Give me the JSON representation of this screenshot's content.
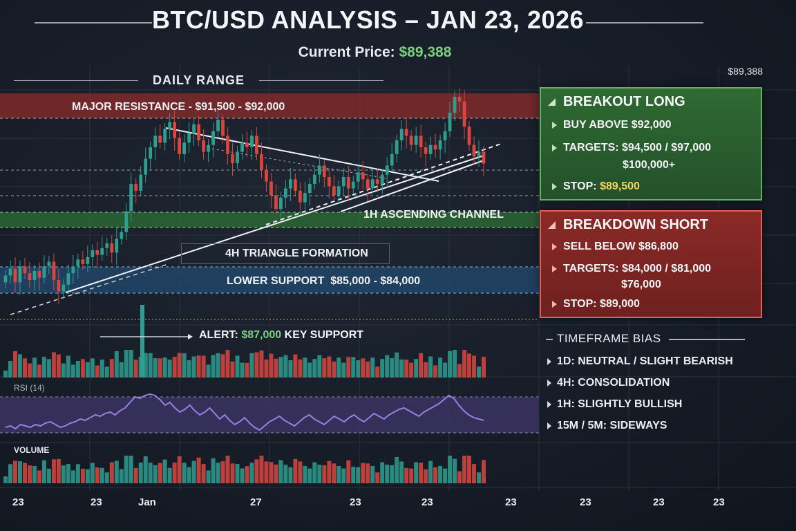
{
  "header": {
    "title": "BTC/USD ANALYSIS – JAN 23, 2026",
    "current_price_label": "Current Price:",
    "current_price_value": "$89,388",
    "right_price": "$89,388"
  },
  "zones": {
    "daily_range": "DAILY RANGE",
    "resistance": "MAJOR RESISTANCE - $91,500 - $92,000",
    "ascending_channel": "1H ASCENDING CHANNEL",
    "triangle": "4H TRIANGLE FORMATION",
    "lower_support": "LOWER SUPPORT  $85,000 - $84,000",
    "alert_prefix": "ALERT:",
    "alert_value": "$87,000",
    "alert_suffix": "KEY SUPPORT"
  },
  "breakout_long": {
    "title": "BREAKOUT LONG",
    "buy": "BUY ABOVE $92,000",
    "targets": "TARGETS: $94,500 / $97,000",
    "targets_2": "$100,000+",
    "stop_label": "STOP:",
    "stop_value": "$89,500"
  },
  "breakdown_short": {
    "title": "BREAKDOWN SHORT",
    "sell": "SELL BELOW $86,800",
    "targets": "TARGETS: $84,000 / $81,000",
    "targets_2": "$76,000",
    "stop": "STOP: $89,000"
  },
  "timeframe_bias": {
    "title": "TIMEFRAME BIAS",
    "items": [
      "1D: NEUTRAL / SLIGHT BEARISH",
      "4H: CONSOLIDATION",
      "1H: SLIGHTLY BULLISH",
      "15M / 5M: SIDEWAYS"
    ]
  },
  "panels": {
    "rsi_label": "RSI (14)",
    "volume_label": "VOLUME"
  },
  "x_ticks": [
    "23",
    "23",
    "Jan",
    "27",
    "23",
    "23",
    "23",
    "23",
    "23",
    "23"
  ],
  "colors": {
    "up": "#2f9e8f",
    "down": "#d9463f",
    "resistance_band": "#8e2b2b",
    "support_band": "#2d6a35",
    "lower_support_band": "#22476b",
    "rsi_line": "#9b7fe0",
    "rsi_band": "#3d3566"
  },
  "chart_data": {
    "type": "candlestick",
    "price_levels": {
      "current": 89388,
      "resistance": [
        91500,
        92000
      ],
      "lower_support": [
        84000,
        85000
      ],
      "key_support": 87000
    },
    "candles_close_approx": [
      84500,
      84800,
      84200,
      84900,
      84600,
      84300,
      84700,
      84400,
      84900,
      85100,
      84300,
      83800,
      84100,
      84600,
      84900,
      85200,
      85000,
      85300,
      85600,
      85400,
      85700,
      85900,
      85500,
      86100,
      86400,
      87300,
      88500,
      88200,
      88900,
      89600,
      90100,
      90600,
      90300,
      90900,
      91200,
      90500,
      89800,
      90300,
      90700,
      91100,
      90400,
      89900,
      90200,
      90800,
      91300,
      90600,
      89800,
      89400,
      89900,
      90300,
      90100,
      90600,
      89800,
      89100,
      88600,
      88000,
      87400,
      87900,
      88300,
      88700,
      88200,
      87700,
      88100,
      88500,
      88900,
      89300,
      88800,
      88400,
      88000,
      88400,
      88800,
      88300,
      88600,
      89000,
      88700,
      88300,
      88700,
      88500,
      88900,
      89300,
      89800,
      90400,
      90900,
      90600,
      90200,
      90600,
      90100,
      89800,
      90200,
      90000,
      90400,
      90800,
      91600,
      92300,
      92100,
      91000,
      90200,
      89700,
      89900,
      89388
    ],
    "rsi_approx": [
      44,
      45,
      43,
      46,
      45,
      44,
      46,
      45,
      47,
      48,
      46,
      44,
      45,
      47,
      48,
      50,
      49,
      51,
      53,
      52,
      54,
      55,
      53,
      56,
      58,
      62,
      66,
      65,
      67,
      68,
      67,
      64,
      60,
      62,
      58,
      55,
      57,
      60,
      56,
      53,
      55,
      58,
      54,
      50,
      53,
      49,
      46,
      48,
      51,
      47,
      44,
      42,
      45,
      48,
      50,
      52,
      49,
      47,
      45,
      48,
      51,
      53,
      50,
      48,
      46,
      49,
      52,
      50,
      48,
      51,
      53,
      50,
      48,
      51,
      54,
      52,
      50,
      53,
      55,
      57,
      58,
      56,
      54,
      52,
      55,
      57,
      59,
      61,
      64,
      67,
      65,
      60,
      56,
      53,
      51,
      50,
      49
    ]
  }
}
